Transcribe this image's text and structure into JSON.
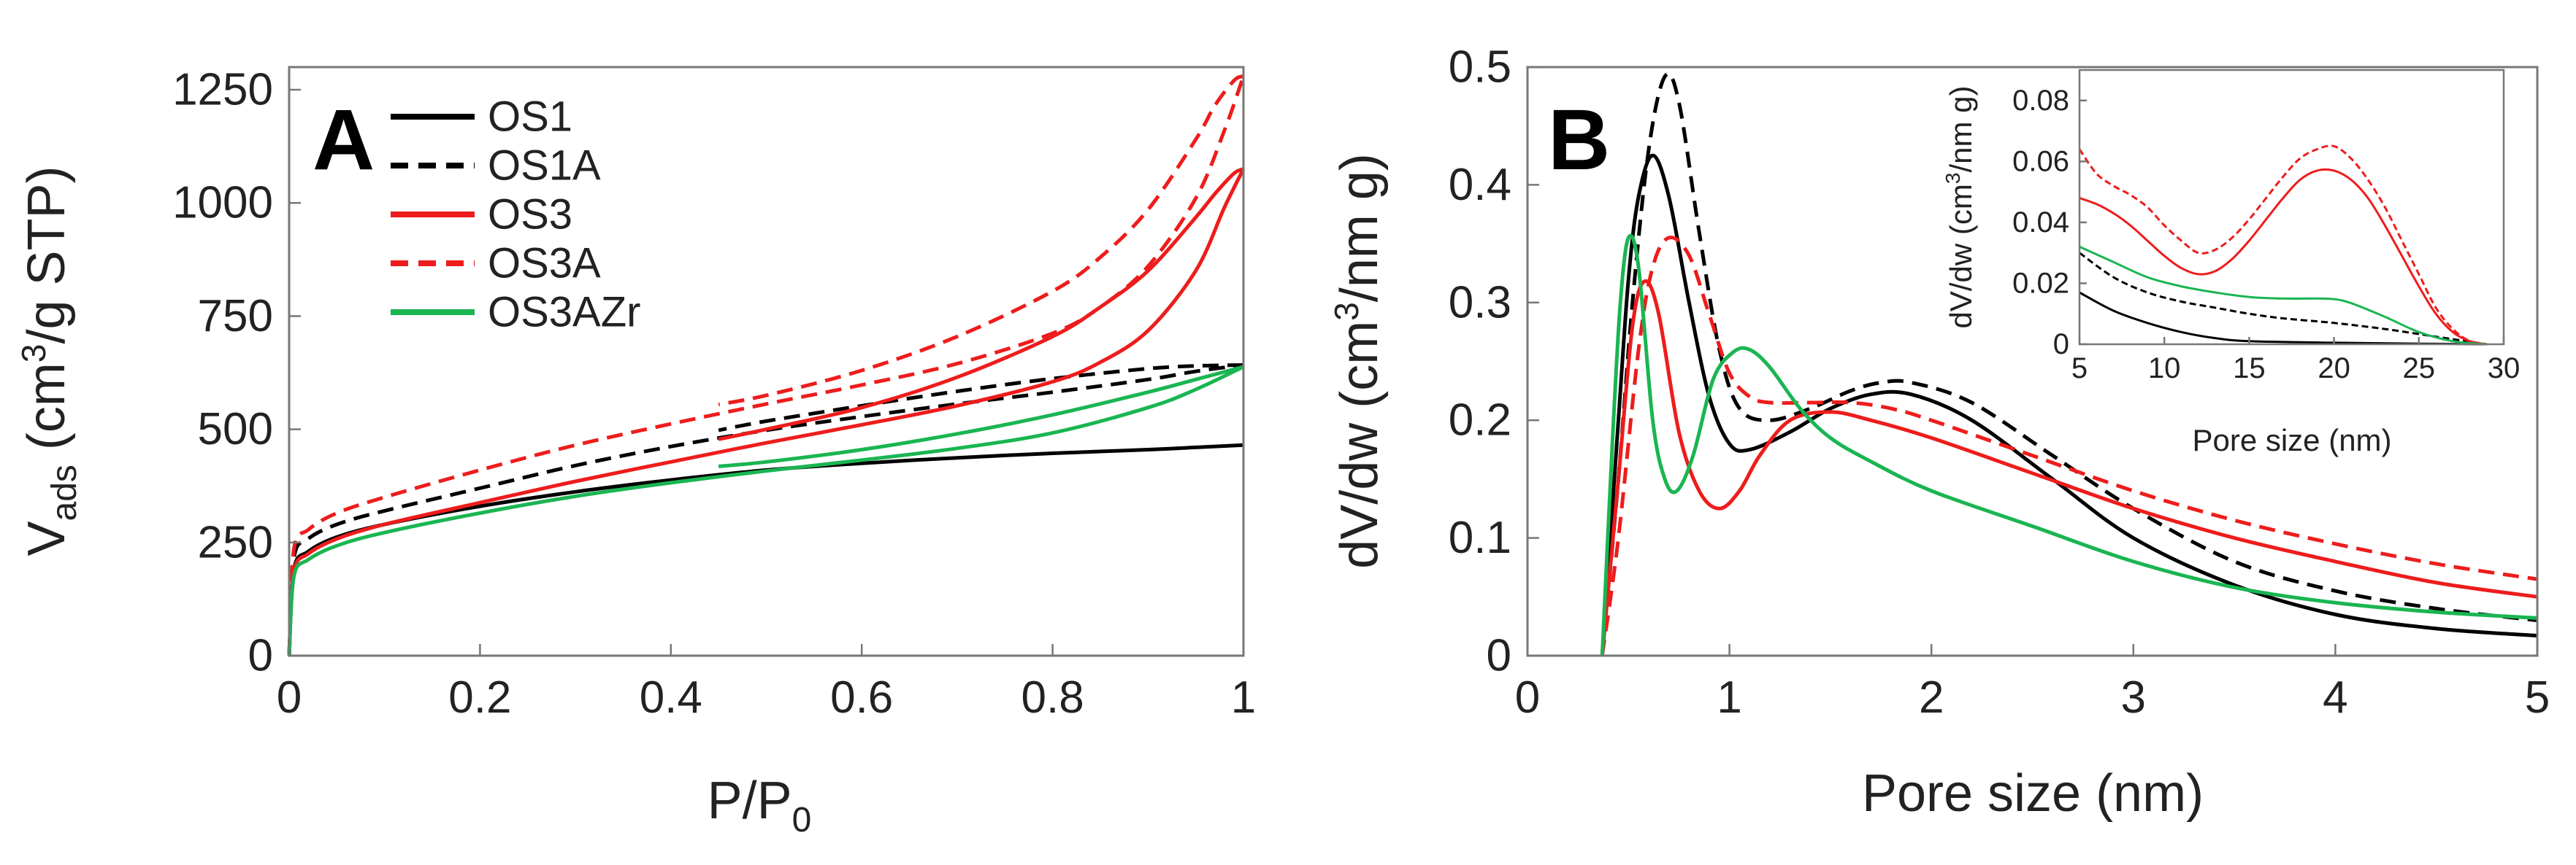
{
  "colors": {
    "OS1": "#000000",
    "OS1A": "#000000",
    "OS3": "#ee1c1c",
    "OS3A": "#ee1c1c",
    "OS3AZr": "#1ab552"
  },
  "panelA": {
    "letter": "A",
    "ylabel_main": "V",
    "ylabel_sub": "ads",
    "ylabel_rest_a": " (cm",
    "ylabel_sup": "3",
    "ylabel_rest_b": "/g STP)",
    "xlabel_main": "P/P",
    "xlabel_sub": "0",
    "xticks": [
      "0",
      "0.2",
      "0.4",
      "0.6",
      "0.8",
      "1"
    ],
    "yticks": [
      "0",
      "250",
      "500",
      "750",
      "1000",
      "1250"
    ],
    "legend": [
      {
        "name": "OS1",
        "style": "solid",
        "color": "#000000"
      },
      {
        "name": "OS1A",
        "style": "dashed",
        "color": "#000000"
      },
      {
        "name": "OS3",
        "style": "solid",
        "color": "#ee1c1c"
      },
      {
        "name": "OS3A",
        "style": "dashed",
        "color": "#ee1c1c"
      },
      {
        "name": "OS3AZr",
        "style": "solid",
        "color": "#1ab552"
      }
    ]
  },
  "panelB": {
    "letter": "B",
    "ylabel_a": "dV/dw (cm",
    "ylabel_sup": "3",
    "ylabel_b": "/nm g)",
    "xlabel": "Pore size (nm)",
    "xticks": [
      "0",
      "1",
      "2",
      "3",
      "4",
      "5"
    ],
    "yticks": [
      "0",
      "0.1",
      "0.2",
      "0.3",
      "0.4",
      "0.5"
    ],
    "inset": {
      "ylabel_a": "dV/dw (cm",
      "ylabel_sup": "3",
      "ylabel_b": "/nm g)",
      "xlabel": "Pore size (nm)",
      "xticks": [
        "5",
        "10",
        "15",
        "20",
        "25",
        "30"
      ],
      "yticks": [
        "0",
        "0.02",
        "0.04",
        "0.06",
        "0.08"
      ]
    }
  },
  "chart_data": [
    {
      "type": "line",
      "title": "A",
      "xlabel": "P/P0",
      "ylabel": "Vads (cm3/g STP)",
      "xlim": [
        0,
        1
      ],
      "ylim": [
        0,
        1300
      ],
      "series": [
        {
          "name": "OS1",
          "style": "solid",
          "color": "#000000",
          "x": [
            0,
            0.005,
            0.02,
            0.05,
            0.1,
            0.2,
            0.3,
            0.4,
            0.5,
            0.6,
            0.7,
            0.8,
            0.9,
            0.95,
            1.0
          ],
          "y": [
            0,
            190,
            230,
            262,
            290,
            330,
            362,
            388,
            410,
            425,
            437,
            447,
            455,
            460,
            465
          ]
        },
        {
          "name": "OS1A",
          "style": "dashed",
          "color": "#000000",
          "x": [
            0,
            0.005,
            0.02,
            0.05,
            0.1,
            0.2,
            0.3,
            0.4,
            0.5,
            0.6,
            0.7,
            0.8,
            0.9,
            0.95,
            1.0
          ],
          "y": [
            0,
            215,
            258,
            290,
            320,
            370,
            420,
            462,
            498,
            528,
            556,
            582,
            610,
            628,
            642
          ],
          "desorption_x": [
            1.0,
            0.95,
            0.9,
            0.8,
            0.7,
            0.6,
            0.5,
            0.45
          ],
          "desorption_y": [
            642,
            640,
            634,
            612,
            584,
            552,
            518,
            498
          ]
        },
        {
          "name": "OS3",
          "style": "solid",
          "color": "#ee1c1c",
          "x": [
            0,
            0.005,
            0.02,
            0.05,
            0.1,
            0.2,
            0.3,
            0.4,
            0.5,
            0.6,
            0.7,
            0.8,
            0.85,
            0.9,
            0.95,
            0.98,
            1.0
          ],
          "y": [
            0,
            185,
            225,
            258,
            290,
            338,
            385,
            428,
            470,
            510,
            552,
            605,
            648,
            718,
            850,
            990,
            1075
          ],
          "desorption_x": [
            1.0,
            0.99,
            0.97,
            0.95,
            0.9,
            0.85,
            0.8,
            0.7,
            0.6,
            0.5,
            0.45
          ],
          "desorption_y": [
            1075,
            1065,
            1020,
            968,
            850,
            770,
            705,
            615,
            548,
            500,
            478
          ]
        },
        {
          "name": "OS3A",
          "style": "dashed",
          "color": "#ee1c1c",
          "x": [
            0,
            0.005,
            0.02,
            0.05,
            0.1,
            0.2,
            0.3,
            0.4,
            0.5,
            0.6,
            0.7,
            0.8,
            0.85,
            0.9,
            0.95,
            0.98,
            1.0
          ],
          "y": [
            0,
            235,
            278,
            315,
            350,
            410,
            465,
            512,
            556,
            598,
            645,
            712,
            770,
            860,
            1010,
            1160,
            1280
          ],
          "desorption_x": [
            1.0,
            0.99,
            0.97,
            0.95,
            0.9,
            0.85,
            0.8,
            0.7,
            0.6,
            0.5,
            0.45
          ],
          "desorption_y": [
            1280,
            1270,
            1215,
            1140,
            985,
            880,
            805,
            705,
            630,
            575,
            555
          ]
        },
        {
          "name": "OS3AZr",
          "style": "solid",
          "color": "#1ab552",
          "x": [
            0,
            0.005,
            0.02,
            0.05,
            0.1,
            0.2,
            0.3,
            0.4,
            0.5,
            0.6,
            0.7,
            0.8,
            0.9,
            0.95,
            1.0
          ],
          "y": [
            0,
            175,
            212,
            243,
            272,
            315,
            352,
            382,
            408,
            432,
            458,
            492,
            548,
            588,
            638
          ],
          "desorption_x": [
            1.0,
            0.95,
            0.9,
            0.8,
            0.7,
            0.6,
            0.5,
            0.45
          ],
          "desorption_y": [
            638,
            610,
            582,
            532,
            490,
            455,
            428,
            418
          ]
        }
      ]
    },
    {
      "type": "line",
      "title": "B",
      "xlabel": "Pore size (nm)",
      "ylabel": "dV/dw (cm3/nm g)",
      "xlim": [
        0,
        5
      ],
      "ylim": [
        0,
        0.5
      ],
      "series": [
        {
          "name": "OS1",
          "style": "solid",
          "color": "#000000",
          "x": [
            0.37,
            0.45,
            0.5,
            0.55,
            0.62,
            0.7,
            0.8,
            0.9,
            1.0,
            1.1,
            1.3,
            1.5,
            1.7,
            1.9,
            2.2,
            2.6,
            3.0,
            3.5,
            4.0,
            4.5,
            5.0
          ],
          "y": [
            0,
            0.2,
            0.32,
            0.39,
            0.425,
            0.39,
            0.3,
            0.22,
            0.18,
            0.175,
            0.19,
            0.21,
            0.222,
            0.222,
            0.2,
            0.15,
            0.1,
            0.06,
            0.035,
            0.023,
            0.017
          ]
        },
        {
          "name": "OS1A",
          "style": "dashed",
          "color": "#000000",
          "x": [
            0.37,
            0.45,
            0.52,
            0.6,
            0.68,
            0.75,
            0.85,
            0.95,
            1.05,
            1.2,
            1.4,
            1.6,
            1.75,
            1.9,
            2.2,
            2.6,
            3.0,
            3.5,
            4.0,
            4.5,
            5.0
          ],
          "y": [
            0,
            0.15,
            0.3,
            0.43,
            0.492,
            0.47,
            0.36,
            0.26,
            0.21,
            0.2,
            0.21,
            0.225,
            0.232,
            0.232,
            0.215,
            0.17,
            0.125,
            0.08,
            0.055,
            0.04,
            0.03
          ]
        },
        {
          "name": "OS3",
          "style": "solid",
          "color": "#ee1c1c",
          "x": [
            0.37,
            0.45,
            0.52,
            0.58,
            0.65,
            0.75,
            0.85,
            0.95,
            1.05,
            1.15,
            1.3,
            1.5,
            1.7,
            2.0,
            2.5,
            3.0,
            3.5,
            4.0,
            4.5,
            5.0
          ],
          "y": [
            0,
            0.15,
            0.28,
            0.318,
            0.29,
            0.19,
            0.14,
            0.125,
            0.14,
            0.17,
            0.2,
            0.207,
            0.2,
            0.185,
            0.155,
            0.125,
            0.1,
            0.08,
            0.062,
            0.05
          ]
        },
        {
          "name": "OS3A",
          "style": "dashed",
          "color": "#ee1c1c",
          "x": [
            0.37,
            0.45,
            0.55,
            0.62,
            0.7,
            0.8,
            0.9,
            1.0,
            1.1,
            1.2,
            1.4,
            1.6,
            1.8,
            2.0,
            2.5,
            3.0,
            3.5,
            4.0,
            4.5,
            5.0
          ],
          "y": [
            0,
            0.1,
            0.26,
            0.33,
            0.355,
            0.34,
            0.29,
            0.24,
            0.22,
            0.215,
            0.215,
            0.215,
            0.21,
            0.2,
            0.17,
            0.14,
            0.115,
            0.095,
            0.078,
            0.065
          ]
        },
        {
          "name": "OS3AZr",
          "style": "solid",
          "color": "#1ab552",
          "x": [
            0.37,
            0.42,
            0.46,
            0.5,
            0.55,
            0.62,
            0.68,
            0.74,
            0.82,
            0.92,
            1.02,
            1.1,
            1.2,
            1.35,
            1.5,
            1.7,
            2.0,
            2.5,
            3.0,
            3.5,
            4.0,
            4.5,
            5.0
          ],
          "y": [
            0,
            0.18,
            0.3,
            0.355,
            0.33,
            0.2,
            0.15,
            0.14,
            0.17,
            0.235,
            0.258,
            0.26,
            0.245,
            0.21,
            0.185,
            0.165,
            0.14,
            0.11,
            0.08,
            0.058,
            0.045,
            0.037,
            0.032
          ]
        }
      ]
    },
    {
      "type": "line",
      "title": "B inset",
      "xlabel": "Pore size (nm)",
      "ylabel": "dV/dw (cm3/nm g)",
      "xlim": [
        5,
        30
      ],
      "ylim": [
        0,
        0.09
      ],
      "series": [
        {
          "name": "OS1",
          "style": "solid",
          "color": "#000000",
          "x": [
            5,
            7,
            9,
            11,
            13,
            15,
            20,
            25,
            29
          ],
          "y": [
            0.017,
            0.011,
            0.007,
            0.004,
            0.002,
            0.001,
            0.0005,
            0.0002,
            0
          ]
        },
        {
          "name": "OS1A",
          "style": "dashed",
          "color": "#000000",
          "x": [
            5,
            7,
            9,
            11,
            13,
            15,
            17,
            20,
            23,
            26,
            29
          ],
          "y": [
            0.03,
            0.022,
            0.017,
            0.014,
            0.012,
            0.01,
            0.0085,
            0.007,
            0.005,
            0.0025,
            0
          ]
        },
        {
          "name": "OS3",
          "style": "solid",
          "color": "#ee1c1c",
          "x": [
            5,
            6,
            7,
            8,
            9,
            10,
            11,
            12,
            13,
            14,
            15,
            16,
            17,
            18,
            19,
            20,
            21,
            22,
            23,
            24,
            25,
            26,
            27,
            28,
            29
          ],
          "y": [
            0.048,
            0.046,
            0.043,
            0.039,
            0.034,
            0.029,
            0.025,
            0.023,
            0.024,
            0.028,
            0.034,
            0.041,
            0.048,
            0.054,
            0.057,
            0.057,
            0.054,
            0.048,
            0.039,
            0.029,
            0.019,
            0.01,
            0.004,
            0.001,
            0
          ]
        },
        {
          "name": "OS3A",
          "style": "dashed",
          "color": "#ee1c1c",
          "x": [
            5,
            6,
            7,
            8,
            9,
            10,
            11,
            12,
            13,
            14,
            15,
            16,
            17,
            18,
            19,
            20,
            21,
            22,
            23,
            24,
            25,
            26,
            27,
            28,
            29
          ],
          "y": [
            0.064,
            0.056,
            0.052,
            0.049,
            0.045,
            0.039,
            0.034,
            0.03,
            0.031,
            0.035,
            0.041,
            0.048,
            0.055,
            0.061,
            0.064,
            0.065,
            0.061,
            0.054,
            0.045,
            0.034,
            0.023,
            0.012,
            0.005,
            0.001,
            0
          ]
        },
        {
          "name": "OS3AZr",
          "style": "solid",
          "color": "#1ab552",
          "x": [
            5,
            7,
            9,
            11,
            13,
            15,
            17,
            19,
            20,
            21,
            23,
            25,
            27,
            29
          ],
          "y": [
            0.032,
            0.027,
            0.022,
            0.019,
            0.017,
            0.0155,
            0.015,
            0.015,
            0.0148,
            0.0135,
            0.009,
            0.004,
            0.001,
            0
          ]
        }
      ]
    }
  ]
}
